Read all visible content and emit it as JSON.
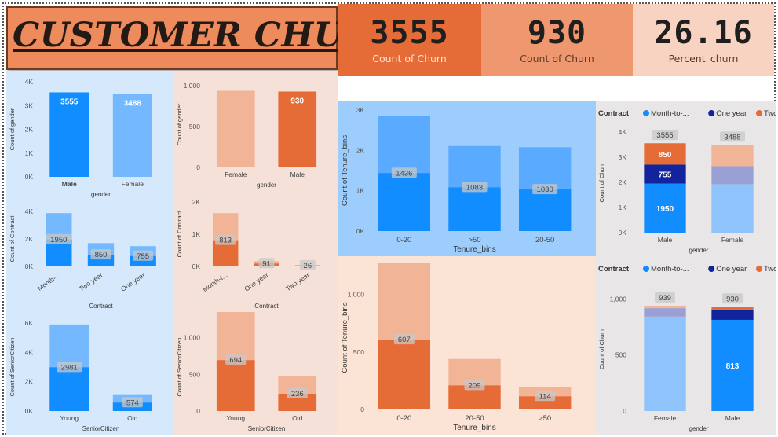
{
  "title": "CUSTOMER CHURN",
  "colors": {
    "blue": "#118dff",
    "blue_light": "#74b9ff",
    "blue_bg": "#d6e9fc",
    "orange": "#e66c37",
    "orange_light": "#f2b496",
    "orange_bg": "#f5e1d8",
    "navy": "#12239e",
    "blue_tenure_bg": "#9dcdfc",
    "orange_tenure_bg": "#fbe3d6",
    "grey_bg": "#e8e6e6"
  },
  "kpis": [
    {
      "value": "3555",
      "label": "Count of Churn",
      "bg": "#e66c37",
      "fg": "#1f1f1f",
      "lblfg": "#ffe3d4"
    },
    {
      "value": "930",
      "label": "Count of Churn",
      "bg": "#ef9870",
      "fg": "#1f1f1f",
      "lblfg": "#5a3a2c"
    },
    {
      "value": "26.16",
      "label": "Percent_churn",
      "bg": "#f8d3c2",
      "fg": "#1f1f1f",
      "lblfg": "#5a3a2c"
    }
  ],
  "charts": [
    {
      "id": "gender-all",
      "type": "bar",
      "ylabel": "Count of gender",
      "xlabel": "gender",
      "categories": [
        "Male",
        "Female"
      ],
      "bold_first": true,
      "ticks": [
        {
          "v": 0,
          "t": "0K"
        },
        {
          "v": 1000,
          "t": "1K"
        },
        {
          "v": 2000,
          "t": "2K"
        },
        {
          "v": 3000,
          "t": "3K"
        },
        {
          "v": 4000,
          "t": "4K"
        }
      ],
      "ymax": 4000,
      "values": [
        3555,
        3488
      ],
      "colors": [
        "#118dff",
        "#74b9ff"
      ],
      "label_style": "white"
    },
    {
      "id": "gender-churn",
      "type": "bar",
      "ylabel": "Count of gender",
      "xlabel": "gender",
      "categories": [
        "Female",
        "Male"
      ],
      "ticks": [
        {
          "v": 0,
          "t": "0"
        },
        {
          "v": 500,
          "t": "500"
        },
        {
          "v": 1000,
          "t": "1,000"
        }
      ],
      "ymax": 1050,
      "values": [
        939,
        930
      ],
      "labels": [
        "",
        "930"
      ],
      "colors": [
        "#f2b496",
        "#e66c37"
      ],
      "label_style": "white"
    },
    {
      "id": "contract-all",
      "type": "bar",
      "ylabel": "Count of Contract",
      "xlabel": "Contract",
      "rotate": true,
      "categories": [
        "Month-...",
        "Two year",
        "One year"
      ],
      "ticks": [
        {
          "v": 0,
          "t": "0K"
        },
        {
          "v": 2000,
          "t": "2K"
        },
        {
          "v": 4000,
          "t": "4K"
        }
      ],
      "ymax": 4000,
      "values": [
        3875,
        1695,
        1473
      ],
      "fill": [
        1950,
        850,
        755
      ],
      "labels": [
        "1950",
        "850",
        "755"
      ],
      "colors": [
        "#74b9ff",
        "#74b9ff",
        "#74b9ff"
      ],
      "fillcolor": "#118dff",
      "label_style": "grey"
    },
    {
      "id": "contract-churn",
      "type": "bar",
      "ylabel": "Count of Contract",
      "xlabel": "Contract",
      "rotate": true,
      "categories": [
        "Month-t...",
        "One year",
        "Two year"
      ],
      "ticks": [
        {
          "v": 0,
          "t": "0K"
        },
        {
          "v": 1000,
          "t": "1K"
        },
        {
          "v": 2000,
          "t": "2K"
        }
      ],
      "ymax": 2000,
      "values": [
        1655,
        166,
        48
      ],
      "fill": [
        813,
        91,
        26
      ],
      "labels": [
        "813",
        "91",
        "26"
      ],
      "colors": [
        "#f2b496",
        "#f2b496",
        "#f2b496"
      ],
      "fillcolor": "#e66c37",
      "label_style": "grey"
    },
    {
      "id": "senior-all",
      "type": "bar",
      "ylabel": "Count of SeniorCitizen",
      "xlabel": "SeniorCitizen",
      "categories": [
        "Young",
        "Old"
      ],
      "ticks": [
        {
          "v": 0,
          "t": "0K"
        },
        {
          "v": 2000,
          "t": "2K"
        },
        {
          "v": 4000,
          "t": "4K"
        },
        {
          "v": 6000,
          "t": "6K"
        }
      ],
      "ymax": 6000,
      "values": [
        5901,
        1142
      ],
      "fill": [
        2981,
        574
      ],
      "labels": [
        "2981",
        "574"
      ],
      "colors": [
        "#74b9ff",
        "#74b9ff"
      ],
      "fillcolor": "#118dff",
      "label_style": "grey"
    },
    {
      "id": "senior-churn",
      "type": "bar",
      "ylabel": "Count of SeniorCitizen",
      "xlabel": "SeniorCitizen",
      "categories": [
        "Young",
        "Old"
      ],
      "ticks": [
        {
          "v": 0,
          "t": "0"
        },
        {
          "v": 500,
          "t": "500"
        },
        {
          "v": 1000,
          "t": "1,000"
        }
      ],
      "ymax": 1200,
      "values": [
        1393,
        476
      ],
      "fill": [
        694,
        236
      ],
      "labels": [
        "694",
        "236"
      ],
      "colors": [
        "#f2b496",
        "#f2b496"
      ],
      "fillcolor": "#e66c37",
      "label_style": "grey"
    },
    {
      "id": "tenure-all",
      "type": "bar",
      "ylabel": "Count of Tenure_bins",
      "xlabel": "Tenure_bins",
      "categories": [
        "0-20",
        ">50",
        "20-50"
      ],
      "ticks": [
        {
          "v": 0,
          "t": "0K"
        },
        {
          "v": 1000,
          "t": "1K"
        },
        {
          "v": 2000,
          "t": "2K"
        },
        {
          "v": 3000,
          "t": "3K"
        }
      ],
      "ymax": 3000,
      "values": [
        2857,
        2108,
        2078
      ],
      "fill": [
        1436,
        1083,
        1030
      ],
      "labels": [
        "1436",
        "1083",
        "1030"
      ],
      "colors": [
        "#5aaaff",
        "#5aaaff",
        "#5aaaff"
      ],
      "fillcolor": "#118dff",
      "label_style": "grey"
    },
    {
      "id": "tenure-churn",
      "type": "bar",
      "ylabel": "Count of Tenure_bins",
      "xlabel": "Tenure_bins",
      "categories": [
        "0-20",
        "20-50",
        ">50"
      ],
      "ticks": [
        {
          "v": 0,
          "t": "0"
        },
        {
          "v": 500,
          "t": "500"
        },
        {
          "v": 1000,
          "t": "1,000"
        }
      ],
      "ymax": 1250,
      "values": [
        1273,
        439,
        192
      ],
      "fill": [
        607,
        209,
        114
      ],
      "labels": [
        "607",
        "209",
        "114"
      ],
      "colors": [
        "#f2b496",
        "#f2b496",
        "#f2b496"
      ],
      "fillcolor": "#e66c37",
      "label_style": "grey"
    },
    {
      "id": "contract-gender-all",
      "type": "stacked",
      "ylabel": "Count of Churn",
      "xlabel": "gender",
      "legend": {
        "title": "Contract",
        "items": [
          {
            "name": "Month-to-...",
            "color": "#118dff"
          },
          {
            "name": "One year",
            "color": "#12239e"
          },
          {
            "name": "Two year",
            "color": "#e66c37"
          }
        ]
      },
      "categories": [
        "Male",
        "Female"
      ],
      "ticks": [
        {
          "v": 0,
          "t": "0K"
        },
        {
          "v": 1000,
          "t": "1K"
        },
        {
          "v": 2000,
          "t": "2K"
        },
        {
          "v": 3000,
          "t": "3K"
        },
        {
          "v": 4000,
          "t": "4K"
        }
      ],
      "ymax": 4000,
      "stacks": [
        {
          "segs": [
            {
              "v": 1950,
              "c": "#118dff",
              "label": "1950"
            },
            {
              "v": 755,
              "c": "#12239e",
              "label": "755"
            },
            {
              "v": 850,
              "c": "#e66c37",
              "label": "850"
            }
          ],
          "total": "3555"
        },
        {
          "segs": [
            {
              "v": 1925,
              "c": "#8ec4fb"
            },
            {
              "v": 718,
              "c": "#9a9fd4"
            },
            {
              "v": 845,
              "c": "#f2b496"
            }
          ],
          "total": "3488"
        }
      ]
    },
    {
      "id": "contract-gender-churn",
      "type": "stacked",
      "ylabel": "Count of Churn",
      "xlabel": "gender",
      "legend": {
        "title": "Contract",
        "items": [
          {
            "name": "Month-to-...",
            "color": "#118dff"
          },
          {
            "name": "One year",
            "color": "#12239e"
          },
          {
            "name": "Two year",
            "color": "#e66c37"
          }
        ]
      },
      "categories": [
        "Female",
        "Male"
      ],
      "ticks": [
        {
          "v": 0,
          "t": "0"
        },
        {
          "v": 500,
          "t": "500"
        },
        {
          "v": 1000,
          "t": "1,000"
        }
      ],
      "ymax": 1100,
      "stacks": [
        {
          "segs": [
            {
              "v": 842,
              "c": "#8ec4fb"
            },
            {
              "v": 75,
              "c": "#9a9fd4"
            },
            {
              "v": 22,
              "c": "#f2b496"
            }
          ],
          "total": "939"
        },
        {
          "segs": [
            {
              "v": 813,
              "c": "#118dff",
              "label": "813"
            },
            {
              "v": 91,
              "c": "#12239e"
            },
            {
              "v": 26,
              "c": "#e66c37"
            }
          ],
          "total": "930"
        }
      ]
    }
  ],
  "chart_data": [
    {
      "type": "bar",
      "title": "",
      "xlabel": "gender",
      "ylabel": "Count of gender",
      "categories": [
        "Male",
        "Female"
      ],
      "values": [
        3555,
        3488
      ],
      "ylim": [
        0,
        4000
      ]
    },
    {
      "type": "bar",
      "title": "",
      "xlabel": "gender",
      "ylabel": "Count of gender",
      "categories": [
        "Female",
        "Male"
      ],
      "values": [
        939,
        930
      ],
      "ylim": [
        0,
        1000
      ]
    },
    {
      "type": "bar",
      "title": "",
      "xlabel": "Contract",
      "ylabel": "Count of Contract",
      "categories": [
        "Month-...",
        "Two year",
        "One year"
      ],
      "values": [
        1950,
        850,
        755
      ],
      "ylim": [
        0,
        4000
      ]
    },
    {
      "type": "bar",
      "title": "",
      "xlabel": "Contract",
      "ylabel": "Count of Contract",
      "categories": [
        "Month-t...",
        "One year",
        "Two year"
      ],
      "values": [
        813,
        91,
        26
      ],
      "ylim": [
        0,
        2000
      ]
    },
    {
      "type": "bar",
      "title": "",
      "xlabel": "SeniorCitizen",
      "ylabel": "Count of SeniorCitizen",
      "categories": [
        "Young",
        "Old"
      ],
      "values": [
        2981,
        574
      ],
      "ylim": [
        0,
        6000
      ]
    },
    {
      "type": "bar",
      "title": "",
      "xlabel": "SeniorCitizen",
      "ylabel": "Count of SeniorCitizen",
      "categories": [
        "Young",
        "Old"
      ],
      "values": [
        694,
        236
      ],
      "ylim": [
        0,
        1000
      ]
    },
    {
      "type": "bar",
      "title": "",
      "xlabel": "Tenure_bins",
      "ylabel": "Count of Tenure_bins",
      "categories": [
        "0-20",
        ">50",
        "20-50"
      ],
      "values": [
        1436,
        1083,
        1030
      ],
      "ylim": [
        0,
        3000
      ]
    },
    {
      "type": "bar",
      "title": "",
      "xlabel": "Tenure_bins",
      "ylabel": "Count of Tenure_bins",
      "categories": [
        "0-20",
        "20-50",
        ">50"
      ],
      "values": [
        607,
        209,
        114
      ],
      "ylim": [
        0,
        1000
      ]
    },
    {
      "type": "bar",
      "title": "",
      "xlabel": "gender",
      "ylabel": "Count of Churn",
      "categories": [
        "Male",
        "Female"
      ],
      "series": [
        {
          "name": "Month-to-...",
          "values": [
            1950,
            null
          ]
        },
        {
          "name": "One year",
          "values": [
            755,
            null
          ]
        },
        {
          "name": "Two year",
          "values": [
            850,
            null
          ]
        }
      ],
      "totals": [
        3555,
        3488
      ],
      "ylim": [
        0,
        4000
      ]
    },
    {
      "type": "bar",
      "title": "",
      "xlabel": "gender",
      "ylabel": "Count of Churn",
      "categories": [
        "Female",
        "Male"
      ],
      "series": [
        {
          "name": "Month-to-...",
          "values": [
            null,
            813
          ]
        },
        {
          "name": "One year",
          "values": [
            null,
            null
          ]
        },
        {
          "name": "Two year",
          "values": [
            null,
            null
          ]
        }
      ],
      "totals": [
        939,
        930
      ],
      "ylim": [
        0,
        1000
      ]
    }
  ]
}
